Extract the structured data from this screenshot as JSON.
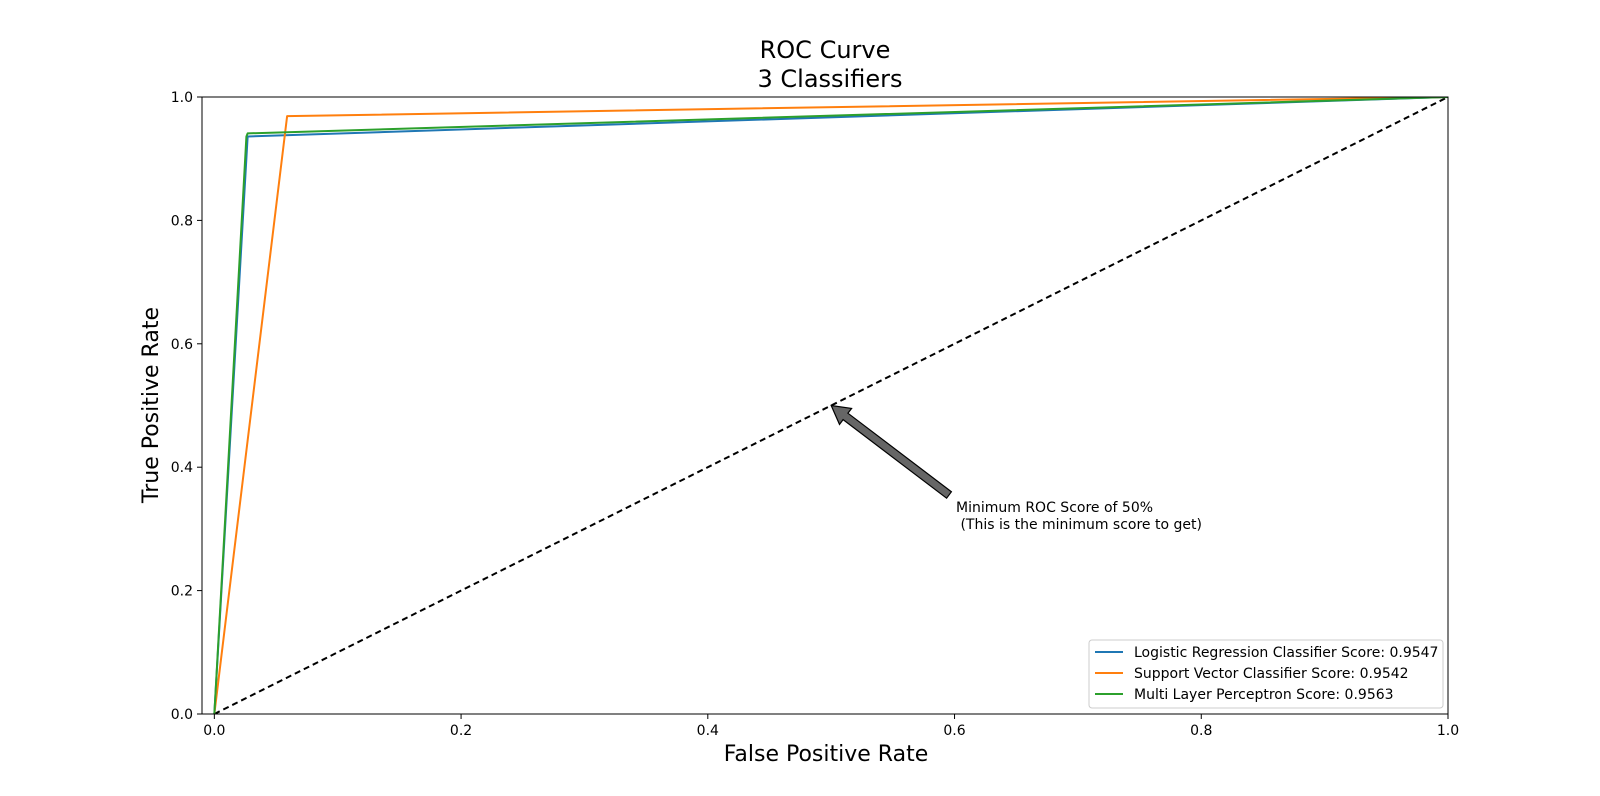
{
  "chart_data": {
    "type": "line",
    "title": "ROC Curve",
    "subtitle": "3 Classifiers",
    "xlabel": "False Positive Rate",
    "ylabel": "True Positive Rate",
    "xlim": [
      -0.01,
      1.0
    ],
    "ylim": [
      0.0,
      1.0
    ],
    "xticks": [
      "0.0",
      "0.2",
      "0.4",
      "0.6",
      "0.8",
      "1.0"
    ],
    "yticks": [
      "0.0",
      "0.2",
      "0.4",
      "0.6",
      "0.8",
      "1.0"
    ],
    "grid": false,
    "legend_position": "lower-right",
    "series": [
      {
        "name": "Logistic Regression Classifier Score: 0.9547",
        "color": "#1f77b4",
        "x": [
          0.0,
          0.027,
          1.0
        ],
        "y": [
          0.0,
          0.936,
          1.0
        ]
      },
      {
        "name": "Support Vector Classifier Score: 0.9542",
        "color": "#ff7f0e",
        "x": [
          0.0,
          0.059,
          1.0
        ],
        "y": [
          0.0,
          0.969,
          1.0
        ]
      },
      {
        "name": "Multi Layer Perceptron Score: 0.9563",
        "color": "#2ca02c",
        "x": [
          0.0,
          0.026,
          0.027,
          1.0
        ],
        "y": [
          0.0,
          0.936,
          0.941,
          1.0
        ]
      }
    ],
    "reference_line": {
      "x": [
        0.0,
        1.0
      ],
      "y": [
        0.0,
        1.0
      ],
      "color": "#000000",
      "style": "dashed"
    },
    "annotation": {
      "line1": "Minimum ROC Score of 50%",
      "line2": " (This is the minimum score to get)",
      "text_position": [
        0.6,
        0.3
      ],
      "arrow_target": [
        0.5,
        0.5
      ],
      "arrow_color": "#666666"
    }
  }
}
